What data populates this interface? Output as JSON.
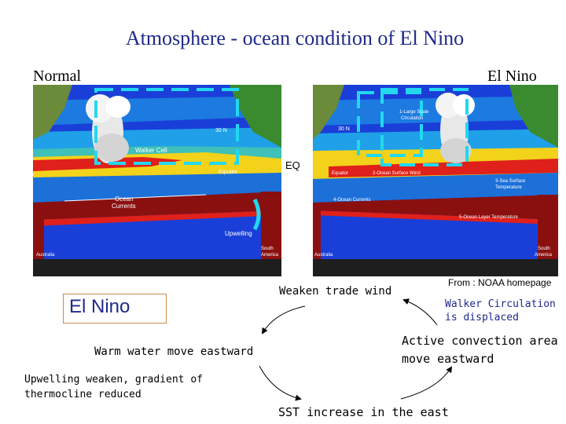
{
  "title": "Atmosphere - ocean condition of  El Nino",
  "labels": {
    "normal": "Normal",
    "el_nino": "El Nino",
    "eq": "EQ",
    "source": "From : NOAA homepage",
    "walker_displaced": "Walker Circulation is displaced",
    "el_nino_box": "El Nino"
  },
  "normal_panel": {
    "lat": "30 N",
    "walker": "Walker Cell",
    "equator": "Equator",
    "ocean_currents_1": "Ocean",
    "ocean_currents_2": "Currents",
    "upwelling": "Upwelling",
    "australia": "Australia",
    "south_america_1": "South",
    "south_america_2": "America"
  },
  "elnino_panel": {
    "lat": "30 N",
    "large_scale_1": "1-Large Scale",
    "large_scale_2": "Circulation",
    "equator": "Equator",
    "surface_wind": "2-Ocean Surface Wind",
    "sst_1": "3-Sea Surface",
    "sst_2": "Temperature",
    "ocean_currents": "4-Ocean Currents",
    "thermocline": "5-Ocean Layer Temperature",
    "australia": "Australia",
    "south_america_1": "South",
    "south_america_2": "America"
  },
  "cycle": {
    "weaken": "Weaken trade wind",
    "warm": "Warm water move eastward",
    "upwell_1": "Upwelling weaken, gradient of",
    "upwell_2": "thermocline reduced",
    "sst": "SST increase in the east",
    "active_1": "Active convection area",
    "active_2": "move eastward"
  },
  "colors": {
    "title": "#1f2a8a",
    "ocean_blue": "#1a3fd8",
    "warm_yellow": "#f2d21a",
    "hot_red": "#e0201a",
    "deep_red": "#8a1010",
    "walker_cyan": "#22d8f0"
  }
}
